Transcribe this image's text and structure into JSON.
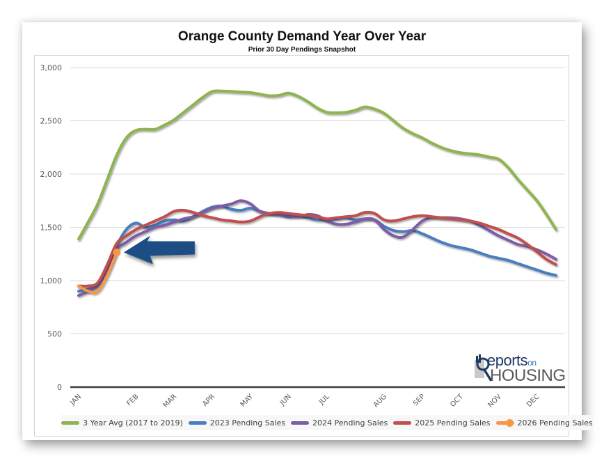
{
  "chart_data": {
    "type": "line",
    "title": "Orange County Demand Year Over Year",
    "subtitle": "Prior 30 Day Pendings Snapshot",
    "xlabel": "",
    "ylabel": "",
    "ylim": [
      0,
      3000
    ],
    "yticks": [
      0,
      500,
      1000,
      1500,
      2000,
      2500,
      3000
    ],
    "ytick_labels": [
      "0",
      "500",
      "1,000",
      "1,500",
      "2,000",
      "2,500",
      "3,000"
    ],
    "x_points": 51,
    "x_unit": "week",
    "month_labels": [
      {
        "label": "JAN",
        "index": 0
      },
      {
        "label": "FEB",
        "index": 6
      },
      {
        "label": "MAR",
        "index": 10
      },
      {
        "label": "APR",
        "index": 14
      },
      {
        "label": "MAY",
        "index": 18
      },
      {
        "label": "JUN",
        "index": 22
      },
      {
        "label": "JUL",
        "index": 26
      },
      {
        "label": "AUG",
        "index": 32
      },
      {
        "label": "SEP",
        "index": 36
      },
      {
        "label": "OCT",
        "index": 40
      },
      {
        "label": "NOV",
        "index": 44
      },
      {
        "label": "DEC",
        "index": 48
      }
    ],
    "grid": true,
    "legend_position": "bottom",
    "series": [
      {
        "name": "3 Year Avg (2017 to 2019)",
        "color": "#8db450",
        "values": [
          1390,
          1550,
          1720,
          1950,
          2180,
          2340,
          2410,
          2420,
          2420,
          2460,
          2510,
          2580,
          2650,
          2720,
          2775,
          2780,
          2775,
          2770,
          2765,
          2750,
          2735,
          2740,
          2760,
          2730,
          2680,
          2620,
          2580,
          2575,
          2580,
          2600,
          2630,
          2610,
          2570,
          2500,
          2430,
          2380,
          2340,
          2290,
          2250,
          2220,
          2200,
          2190,
          2180,
          2160,
          2140,
          2060,
          1950,
          1850,
          1750,
          1620,
          1480
        ]
      },
      {
        "name": "2023 Pending Sales",
        "color": "#4a7ebf",
        "values": [
          900,
          920,
          960,
          1120,
          1330,
          1480,
          1540,
          1500,
          1520,
          1560,
          1570,
          1560,
          1600,
          1650,
          1690,
          1700,
          1670,
          1660,
          1680,
          1650,
          1630,
          1620,
          1600,
          1610,
          1590,
          1570,
          1570,
          1580,
          1590,
          1570,
          1580,
          1570,
          1510,
          1470,
          1460,
          1470,
          1440,
          1400,
          1360,
          1330,
          1310,
          1290,
          1260,
          1230,
          1210,
          1190,
          1160,
          1130,
          1100,
          1070,
          1050
        ]
      },
      {
        "name": "2024 Pending Sales",
        "color": "#7e5ba6",
        "values": [
          860,
          900,
          960,
          1090,
          1290,
          1360,
          1420,
          1460,
          1500,
          1520,
          1550,
          1580,
          1600,
          1640,
          1680,
          1700,
          1720,
          1750,
          1720,
          1650,
          1630,
          1620,
          1610,
          1600,
          1620,
          1610,
          1560,
          1530,
          1530,
          1550,
          1580,
          1570,
          1480,
          1420,
          1410,
          1480,
          1560,
          1590,
          1590,
          1590,
          1580,
          1560,
          1520,
          1470,
          1420,
          1380,
          1340,
          1320,
          1290,
          1250,
          1200
        ]
      },
      {
        "name": "2025 Pending Sales",
        "color": "#c0504d",
        "values": [
          950,
          950,
          980,
          1150,
          1350,
          1420,
          1480,
          1520,
          1560,
          1600,
          1650,
          1660,
          1640,
          1610,
          1590,
          1570,
          1560,
          1550,
          1560,
          1600,
          1630,
          1640,
          1630,
          1620,
          1610,
          1600,
          1580,
          1590,
          1600,
          1610,
          1640,
          1630,
          1570,
          1560,
          1580,
          1600,
          1610,
          1600,
          1590,
          1580,
          1570,
          1560,
          1540,
          1510,
          1480,
          1440,
          1400,
          1340,
          1270,
          1200,
          1150
        ]
      },
      {
        "name": "2026 Pending Sales",
        "color": "#f79646",
        "values": [
          950,
          900,
          900,
          1050,
          1265
        ],
        "end_marker": true
      }
    ],
    "annotations": [
      {
        "type": "arrow",
        "direction": "left",
        "points_to_series": "2026 Pending Sales",
        "points_to_index": 4,
        "color": "#1f4e85"
      }
    ]
  },
  "logo": {
    "top_text": "eports",
    "top_initial": "R",
    "on_text": "on",
    "bottom_text": "HOUSING"
  }
}
